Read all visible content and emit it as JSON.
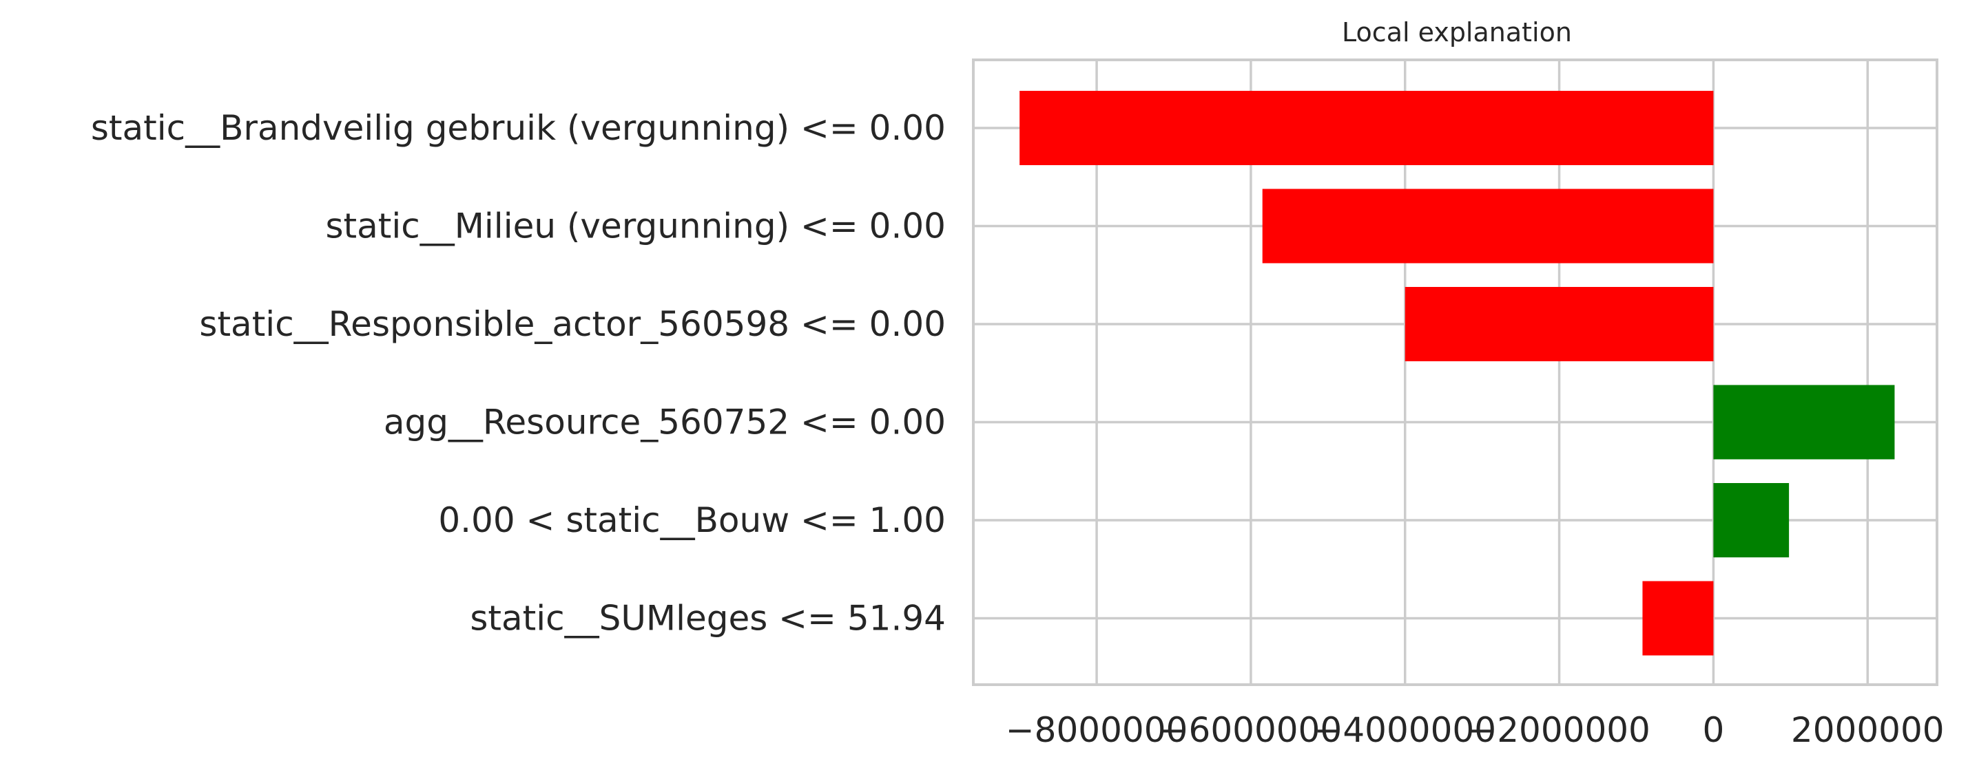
{
  "chart_data": {
    "type": "bar",
    "orientation": "horizontal",
    "title": "Local explanation",
    "xlabel": "",
    "ylabel": "",
    "categories": [
      "static__Brandveilig gebruik (vergunning) <= 0.00",
      "static__Milieu (vergunning) <= 0.00",
      "static__Responsible_actor_560598 <= 0.00",
      "agg__Resource_560752 <= 0.00",
      "0.00 < static__Bouw <= 1.00",
      "static__SUMleges <= 51.94"
    ],
    "values": [
      -9000000,
      -5850000,
      -4000000,
      2350000,
      980000,
      -920000
    ],
    "x_ticks": [
      -8000000,
      -6000000,
      -4000000,
      -2000000,
      0,
      2000000
    ],
    "x_tick_labels": [
      "−8000000",
      "−6000000",
      "−4000000",
      "−2000000",
      "0",
      "2000000"
    ],
    "xlim": [
      -9600000,
      2900000
    ],
    "grid": true,
    "legend": "none",
    "colors": {
      "positive": "#008000",
      "negative": "#ff0000",
      "grid": "#cccccc",
      "axes_edge": "#cccccc",
      "text": "#262626"
    }
  }
}
